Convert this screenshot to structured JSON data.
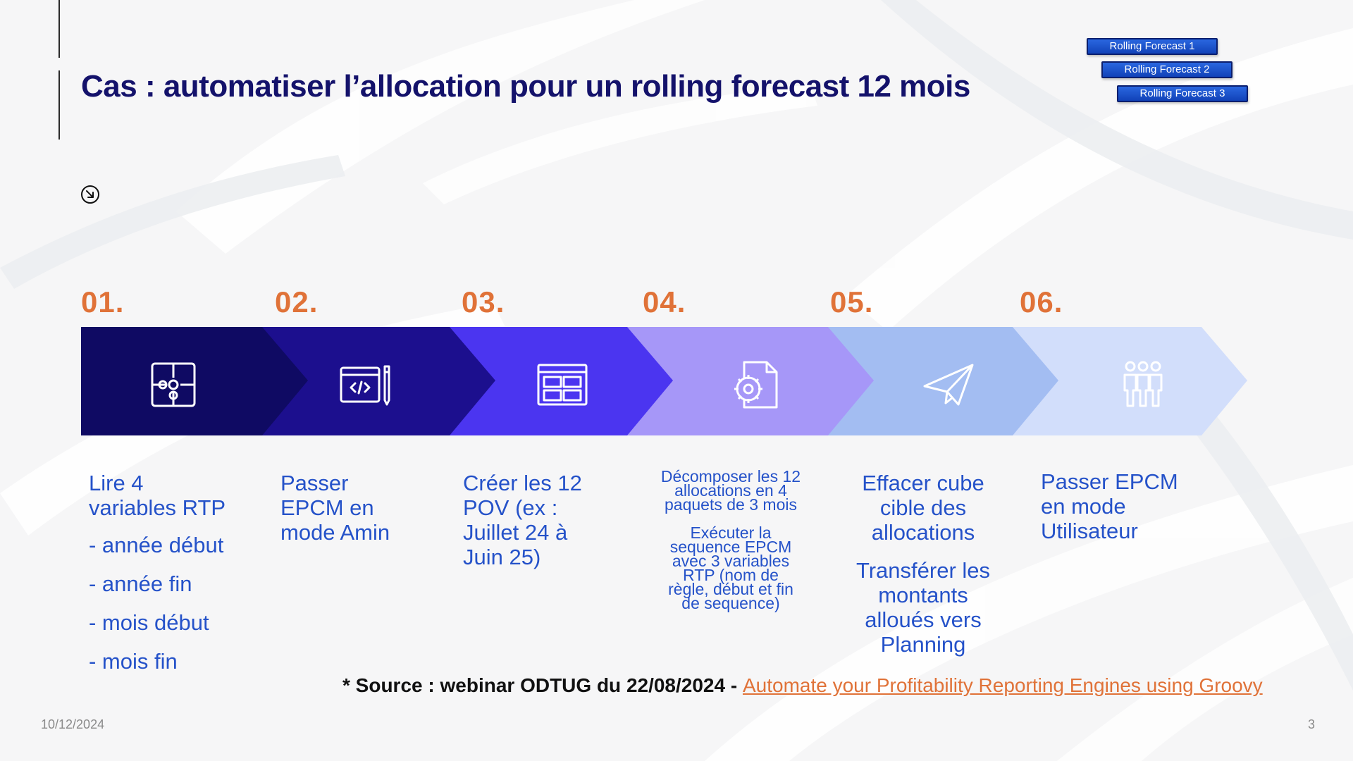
{
  "title": "Cas : automatiser l’allocation pour un rolling forecast 12 mois",
  "tags": [
    "Rolling Forecast 1",
    "Rolling Forecast 2",
    "Rolling Forecast 3"
  ],
  "colors": {
    "title": "#14126b",
    "accent_orange": "#e07238",
    "text_blue": "#2552c9",
    "chevrons": [
      "#0f0a63",
      "#1c0f8e",
      "#4b35f0",
      "#a697f8",
      "#a3bdf2",
      "#d2defb"
    ]
  },
  "steps": [
    {
      "number": "01.",
      "icon": "puzzle-icon",
      "lines": [
        "Lire 4",
        "variables RTP"
      ],
      "bullets": [
        "- année début",
        "- année fin",
        "- mois début",
        "- mois fin"
      ]
    },
    {
      "number": "02.",
      "icon": "code-window-pencil-icon",
      "lines": [
        "Passer",
        "EPCM en",
        "mode Amin"
      ]
    },
    {
      "number": "03.",
      "icon": "dashboard-layout-icon",
      "lines": [
        "Créer les 12",
        "POV (ex :",
        "Juillet 24 à",
        "Juin 25)"
      ]
    },
    {
      "number": "04.",
      "icon": "document-gear-icon",
      "lines": [
        "Décomposer les 12",
        "allocations en 4",
        "paquets de 3 mois"
      ],
      "lines2": [
        "Exécuter la",
        "sequence EPCM",
        "avec 3 variables",
        "RTP (nom de",
        "règle, début et fin",
        "de sequence)"
      ]
    },
    {
      "number": "05.",
      "icon": "paper-plane-icon",
      "lines": [
        "Effacer cube",
        "cible des",
        "allocations"
      ],
      "lines2": [
        "Transférer les",
        "montants",
        "alloués vers",
        "Planning"
      ]
    },
    {
      "number": "06.",
      "icon": "users-group-icon",
      "lines": [
        "Passer EPCM",
        "en mode",
        "Utilisateur"
      ]
    }
  ],
  "source": {
    "prefix": "* Source : webinar ODTUG du 22/08/2024 - ",
    "link_text": "Automate your Profitability Reporting Engines using Groovy"
  },
  "footer": {
    "date": "10/12/2024",
    "page": "3"
  }
}
